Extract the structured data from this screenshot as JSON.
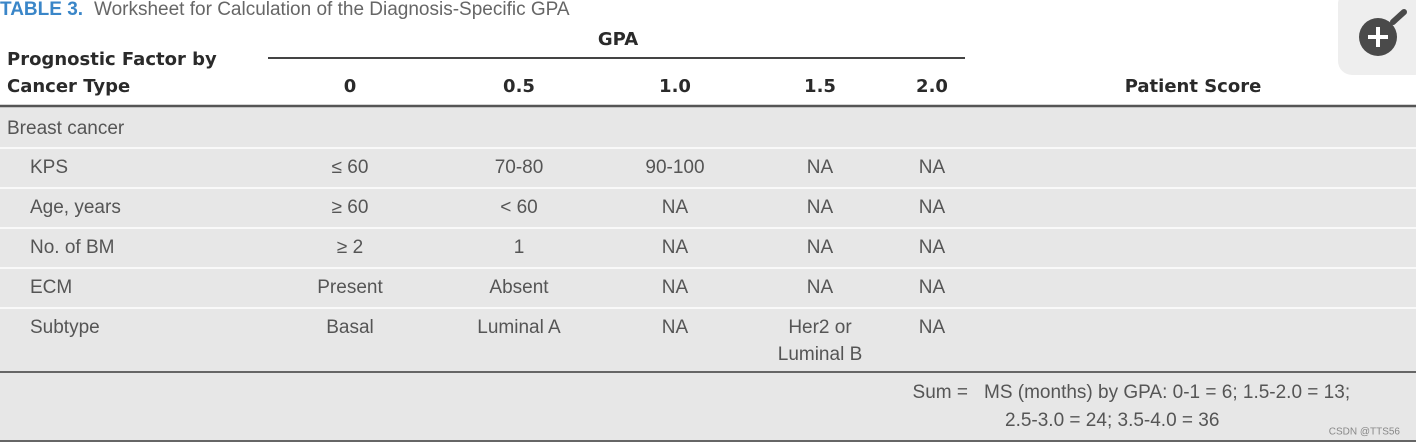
{
  "title": {
    "label": "TABLE 3.",
    "text": "Worksheet for Calculation of the Diagnosis-Specific GPA"
  },
  "header": {
    "group": "GPA",
    "factor": [
      "Prognostic Factor by",
      "Cancer Type"
    ],
    "columns": [
      "0",
      "0.5",
      "1.0",
      "1.5",
      "2.0"
    ],
    "score": "Patient Score"
  },
  "section": "Breast cancer",
  "rows": [
    {
      "factor": "KPS",
      "cells": [
        [
          "≤ 60"
        ],
        [
          "70-80"
        ],
        [
          "90-100"
        ],
        [
          "NA"
        ],
        [
          "NA"
        ]
      ]
    },
    {
      "factor": "Age, years",
      "cells": [
        [
          "≥ 60"
        ],
        [
          "< 60"
        ],
        [
          "NA"
        ],
        [
          "NA"
        ],
        [
          "NA"
        ]
      ]
    },
    {
      "factor": "No. of BM",
      "cells": [
        [
          "≥ 2"
        ],
        [
          "1"
        ],
        [
          "NA"
        ],
        [
          "NA"
        ],
        [
          "NA"
        ]
      ]
    },
    {
      "factor": "ECM",
      "cells": [
        [
          "Present"
        ],
        [
          "Absent"
        ],
        [
          "NA"
        ],
        [
          "NA"
        ],
        [
          "NA"
        ]
      ]
    },
    {
      "factor": "Subtype",
      "cells": [
        [
          "Basal"
        ],
        [
          "Luminal A"
        ],
        [
          "NA"
        ],
        [
          "Her2 or",
          "Luminal B"
        ],
        [
          "NA"
        ]
      ]
    }
  ],
  "sum": {
    "label": "Sum =",
    "note": [
      "MS (months) by GPA: 0-1 = 6; 1.5-2.0 = 13;",
      "2.5-3.0 = 24; 3.5-4.0 = 36"
    ]
  },
  "watermark": "CSDN @TTS56"
}
